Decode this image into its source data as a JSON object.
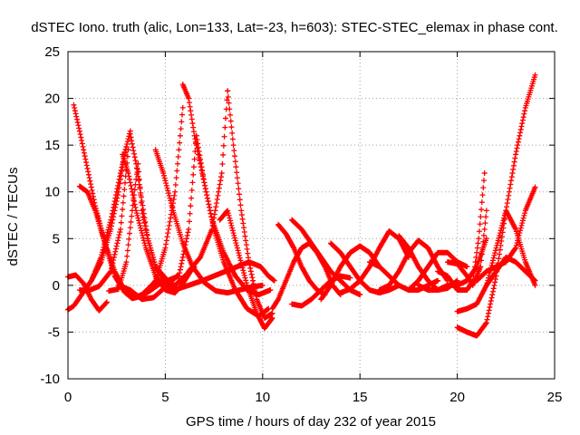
{
  "chart_data": {
    "type": "scatter",
    "title": "dSTEC Iono. truth (alic, Lon=133, Lat=-23, h=603): STEC-STEC_elemax in phase cont.",
    "xlabel": "GPS time / hours of day 232 of year 2015",
    "ylabel": "dSTEC  / TECUs",
    "xlim": [
      0,
      25
    ],
    "ylim": [
      -10,
      25
    ],
    "xticks": [
      0,
      5,
      10,
      15,
      20,
      25
    ],
    "yticks": [
      -10,
      -5,
      0,
      5,
      10,
      15,
      20,
      25
    ],
    "grid": true,
    "marker": "plus",
    "color": "#ff0000",
    "series": [
      {
        "x": [
          0.3,
          0.6,
          1.0,
          1.4,
          1.9,
          2.4,
          2.9,
          3.4,
          3.8,
          4.2,
          4.6
        ],
        "y": [
          19.3,
          16.5,
          12.5,
          8.5,
          4.5,
          1.5,
          -0.5,
          -1.3,
          -1.0,
          -0.2,
          0.7
        ]
      },
      {
        "x": [
          0.6,
          1.0,
          1.4,
          1.9,
          2.4,
          2.9,
          3.3,
          3.7,
          4.2,
          4.6,
          5.0
        ],
        "y": [
          10.6,
          10.0,
          8.0,
          4.5,
          1.0,
          -0.7,
          -1.4,
          -1.2,
          -0.6,
          0.0,
          0.6
        ]
      },
      {
        "x": [
          0.0,
          0.3,
          0.7,
          1.2,
          1.7,
          2.2,
          2.7,
          3.0
        ],
        "y": [
          -2.6,
          -2.2,
          -1.0,
          0.5,
          3.0,
          7.0,
          12.0,
          14.8
        ]
      },
      {
        "x": [
          0.0,
          0.4,
          0.8,
          1.2,
          1.6,
          2.0
        ],
        "y": [
          0.9,
          1.1,
          0.2,
          -1.5,
          -2.7,
          -1.8
        ]
      },
      {
        "x": [
          0.6,
          1.0,
          1.6,
          2.2,
          2.7,
          3.1
        ],
        "y": [
          -0.5,
          -0.6,
          -0.1,
          1.5,
          6.0,
          14.5
        ]
      },
      {
        "x": [
          2.8,
          3.1,
          3.5,
          4.0,
          4.5,
          5.0,
          5.5,
          5.9,
          6.3
        ],
        "y": [
          14.0,
          12.0,
          8.0,
          4.0,
          1.0,
          -0.5,
          -0.8,
          0.2,
          1.5
        ]
      },
      {
        "x": [
          1.2,
          1.7,
          2.2,
          2.6,
          2.9,
          3.2
        ],
        "y": [
          0.5,
          2.5,
          6.0,
          10.0,
          14.0,
          16.5
        ]
      },
      {
        "x": [
          3.2,
          3.5,
          3.8,
          4.1,
          4.5,
          5.0,
          5.5,
          6.0,
          6.5
        ],
        "y": [
          16.2,
          13.0,
          9.0,
          5.0,
          2.0,
          0.3,
          0.0,
          1.0,
          2.0
        ]
      },
      {
        "x": [
          2.1,
          2.6,
          3.0,
          3.3,
          3.6
        ],
        "y": [
          -0.6,
          -0.4,
          2.5,
          8.0,
          13.0
        ]
      },
      {
        "x": [
          3.6,
          3.8,
          4.1,
          4.5,
          5.0
        ],
        "y": [
          13.0,
          8.0,
          5.0,
          2.0,
          0.8
        ]
      },
      {
        "x": [
          2.6,
          3.2,
          3.8,
          4.4,
          5.0,
          5.6
        ],
        "y": [
          0.0,
          -0.5,
          -1.5,
          -1.3,
          -0.2,
          1.0
        ]
      },
      {
        "x": [
          4.5,
          4.9,
          5.4,
          5.9,
          6.4,
          7.0,
          7.6,
          8.2,
          8.8,
          9.4,
          10.0
        ],
        "y": [
          14.5,
          12.0,
          8.0,
          4.5,
          2.0,
          0.3,
          -0.6,
          -0.8,
          -0.5,
          -0.2,
          0.0
        ]
      },
      {
        "x": [
          4.5,
          5.0,
          5.5,
          5.9
        ],
        "y": [
          0.5,
          4.0,
          10.0,
          19.0
        ]
      },
      {
        "x": [
          4.5,
          5.1,
          5.7,
          6.2,
          6.6
        ],
        "y": [
          0.0,
          0.5,
          1.0,
          6.0,
          16.0
        ]
      },
      {
        "x": [
          5.9,
          6.2,
          6.5,
          6.9,
          7.4,
          8.0,
          8.6,
          9.2,
          9.8,
          10.4
        ],
        "y": [
          21.5,
          20.0,
          16.0,
          12.0,
          7.0,
          3.5,
          1.0,
          -0.5,
          -1.0,
          -0.5
        ]
      },
      {
        "x": [
          6.6,
          7.0,
          7.5,
          8.0,
          8.6,
          9.2,
          9.8,
          10.3
        ],
        "y": [
          16.0,
          11.0,
          6.0,
          2.5,
          -0.5,
          -2.5,
          -3.3,
          -2.5
        ]
      },
      {
        "x": [
          5.0,
          5.6,
          6.2,
          6.9,
          7.5,
          8.1,
          8.7,
          9.3,
          9.9,
          10.3,
          10.6
        ],
        "y": [
          -0.2,
          -0.4,
          0.0,
          0.5,
          1.0,
          1.5,
          2.0,
          2.5,
          2.0,
          1.0,
          0.5
        ]
      },
      {
        "x": [
          6.2,
          6.8,
          7.4,
          7.9,
          8.2
        ],
        "y": [
          1.5,
          3.0,
          6.0,
          12.0,
          20.8
        ]
      },
      {
        "x": [
          8.2,
          8.5,
          8.9,
          9.3,
          9.7,
          10.1,
          10.5
        ],
        "y": [
          20.8,
          15.0,
          8.0,
          2.5,
          -1.5,
          -3.5,
          -3.0
        ]
      },
      {
        "x": [
          7.8,
          8.2,
          8.7,
          9.2,
          9.7,
          10.1,
          10.5
        ],
        "y": [
          7.0,
          8.0,
          4.0,
          0.0,
          -3.0,
          -4.6,
          -3.5
        ]
      },
      {
        "x": [
          10.5,
          10.8,
          11.2,
          11.6,
          12.0,
          12.4,
          12.8,
          13.2,
          13.6,
          14.0
        ],
        "y": [
          -2.5,
          -1.5,
          0.5,
          2.5,
          4.0,
          4.5,
          3.5,
          2.0,
          0.0,
          -1.0
        ]
      },
      {
        "x": [
          10.8,
          11.2,
          11.6,
          12.0,
          12.4,
          12.8,
          13.2
        ],
        "y": [
          6.5,
          5.5,
          4.0,
          2.0,
          0.5,
          -0.5,
          -1.0
        ]
      },
      {
        "x": [
          11.5,
          12.0,
          12.5,
          13.0,
          13.5,
          14.0,
          14.5,
          15.0
        ],
        "y": [
          7.0,
          6.0,
          4.5,
          3.0,
          1.5,
          0.5,
          -0.5,
          -1.0
        ]
      },
      {
        "x": [
          11.5,
          12.0,
          12.5,
          13.0,
          13.5,
          14.0,
          14.5
        ],
        "y": [
          -2.0,
          -2.2,
          -1.5,
          -0.5,
          0.5,
          1.0,
          0.8
        ]
      },
      {
        "x": [
          13.0,
          13.5,
          14.0,
          14.5,
          15.0,
          15.5,
          16.0
        ],
        "y": [
          -1.5,
          0.0,
          2.0,
          3.5,
          4.2,
          3.5,
          2.0
        ]
      },
      {
        "x": [
          13.5,
          14.0,
          14.5,
          15.0,
          15.5,
          16.0,
          16.5,
          17.0
        ],
        "y": [
          4.5,
          3.5,
          2.0,
          0.5,
          -0.5,
          -0.8,
          -0.5,
          0.0
        ]
      },
      {
        "x": [
          14.0,
          14.5,
          15.0,
          15.5,
          16.0,
          16.5,
          17.0,
          17.5
        ],
        "y": [
          -0.8,
          -0.4,
          0.5,
          2.0,
          4.0,
          5.8,
          5.0,
          3.0
        ]
      },
      {
        "x": [
          15.5,
          16.0,
          16.5,
          17.0,
          17.5,
          18.0,
          18.5,
          19.0
        ],
        "y": [
          2.5,
          2.0,
          1.0,
          0.0,
          -0.5,
          -0.5,
          0.0,
          0.5
        ]
      },
      {
        "x": [
          16.0,
          16.5,
          17.0,
          17.5,
          18.0,
          18.5,
          19.0,
          19.5
        ],
        "y": [
          -0.5,
          0.0,
          1.5,
          3.5,
          4.8,
          4.0,
          2.0,
          0.5
        ]
      },
      {
        "x": [
          17.0,
          17.5,
          18.0,
          18.5,
          19.0,
          19.5,
          20.0
        ],
        "y": [
          5.3,
          4.0,
          2.0,
          0.5,
          -0.5,
          -0.3,
          0.5
        ]
      },
      {
        "x": [
          17.5,
          18.0,
          18.5,
          19.0,
          19.5,
          20.0,
          20.5
        ],
        "y": [
          -0.5,
          0.5,
          2.0,
          3.5,
          3.5,
          2.5,
          2.0
        ]
      },
      {
        "x": [
          18.0,
          18.5,
          19.0,
          19.5,
          20.0,
          20.5,
          21.0,
          21.5
        ],
        "y": [
          0.0,
          -0.5,
          -0.5,
          0.0,
          0.0,
          0.5,
          2.0,
          5.0
        ]
      },
      {
        "x": [
          19.0,
          19.5,
          20.0,
          20.5,
          20.8,
          21.1,
          21.4
        ],
        "y": [
          1.5,
          1.0,
          -0.5,
          -0.5,
          0.5,
          5.0,
          12.0
        ]
      },
      {
        "x": [
          19.5,
          20.0,
          20.5,
          20.8,
          21.2,
          21.5
        ],
        "y": [
          2.5,
          2.3,
          1.0,
          0.0,
          2.0,
          8.0
        ]
      },
      {
        "x": [
          20.0,
          20.5,
          21.0,
          21.5,
          22.0,
          22.5,
          23.0,
          23.5,
          24.0
        ],
        "y": [
          -4.5,
          -5.0,
          -5.4,
          -4.0,
          1.0,
          8.0,
          14.0,
          19.0,
          22.5
        ]
      },
      {
        "x": [
          20.0,
          20.5,
          21.0,
          21.5,
          22.0,
          22.5,
          23.0,
          23.5,
          24.0
        ],
        "y": [
          -2.8,
          -2.5,
          -2.0,
          0.0,
          4.0,
          8.0,
          6.0,
          2.5,
          0.0
        ]
      },
      {
        "x": [
          21.0,
          21.5,
          22.0,
          22.5,
          23.0,
          23.5,
          24.0
        ],
        "y": [
          0.5,
          1.5,
          2.0,
          2.5,
          4.0,
          8.0,
          10.5
        ]
      },
      {
        "x": [
          21.5,
          22.0,
          22.5,
          23.0,
          23.5,
          24.0
        ],
        "y": [
          0.0,
          1.5,
          3.0,
          2.5,
          1.5,
          0.5
        ]
      }
    ]
  }
}
